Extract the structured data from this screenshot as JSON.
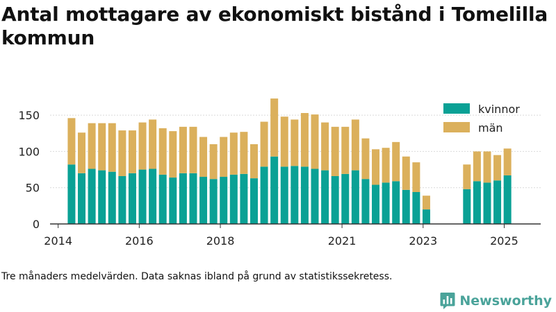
{
  "title": "Antal mottagare av ekonomiskt bistånd i Tomelilla kommun",
  "note": "Tre månaders medelvärden. Data saknas ibland på grund av statistikssekretess.",
  "brand": "Newsworthy",
  "icons": {
    "brand": "newsworthy-logo-icon"
  },
  "colors": {
    "kvinnor": "#0aa195",
    "man": "#dbb05c",
    "grid": "#d9d9d9",
    "axis": "#333333"
  },
  "chart_data": {
    "type": "bar",
    "stacked": true,
    "ylim": [
      0,
      175
    ],
    "yticks": [
      0,
      50,
      100,
      150
    ],
    "xlim": [
      2013.8,
      2025.9
    ],
    "xticks": [
      2014,
      2016,
      2018,
      2021,
      2023,
      2025
    ],
    "grid": "horizontal",
    "legend_position": "top-right",
    "x": [
      2014.33,
      2014.58,
      2014.83,
      2015.08,
      2015.33,
      2015.58,
      2015.83,
      2016.08,
      2016.33,
      2016.58,
      2016.83,
      2017.08,
      2017.33,
      2017.58,
      2017.83,
      2018.08,
      2018.33,
      2018.58,
      2018.83,
      2019.08,
      2019.33,
      2019.58,
      2019.83,
      2020.08,
      2020.33,
      2020.58,
      2020.83,
      2021.08,
      2021.33,
      2021.58,
      2021.83,
      2022.08,
      2022.33,
      2022.58,
      2022.83,
      2023.08,
      2024.08,
      2024.33,
      2024.58,
      2024.83,
      2025.08
    ],
    "series": [
      {
        "name": "kvinnor",
        "values": [
          82,
          70,
          76,
          74,
          72,
          66,
          70,
          75,
          76,
          68,
          64,
          70,
          70,
          65,
          62,
          65,
          68,
          69,
          63,
          79,
          93,
          79,
          80,
          79,
          76,
          74,
          66,
          69,
          74,
          62,
          54,
          57,
          59,
          47,
          44,
          20,
          48,
          59,
          57,
          60,
          67
        ]
      },
      {
        "name": "män",
        "values": [
          64,
          56,
          63,
          65,
          67,
          63,
          59,
          65,
          68,
          64,
          64,
          64,
          64,
          55,
          48,
          55,
          58,
          58,
          47,
          62,
          80,
          69,
          64,
          74,
          75,
          66,
          68,
          65,
          70,
          56,
          49,
          48,
          54,
          46,
          41,
          19,
          34,
          41,
          43,
          35,
          37
        ]
      }
    ]
  }
}
